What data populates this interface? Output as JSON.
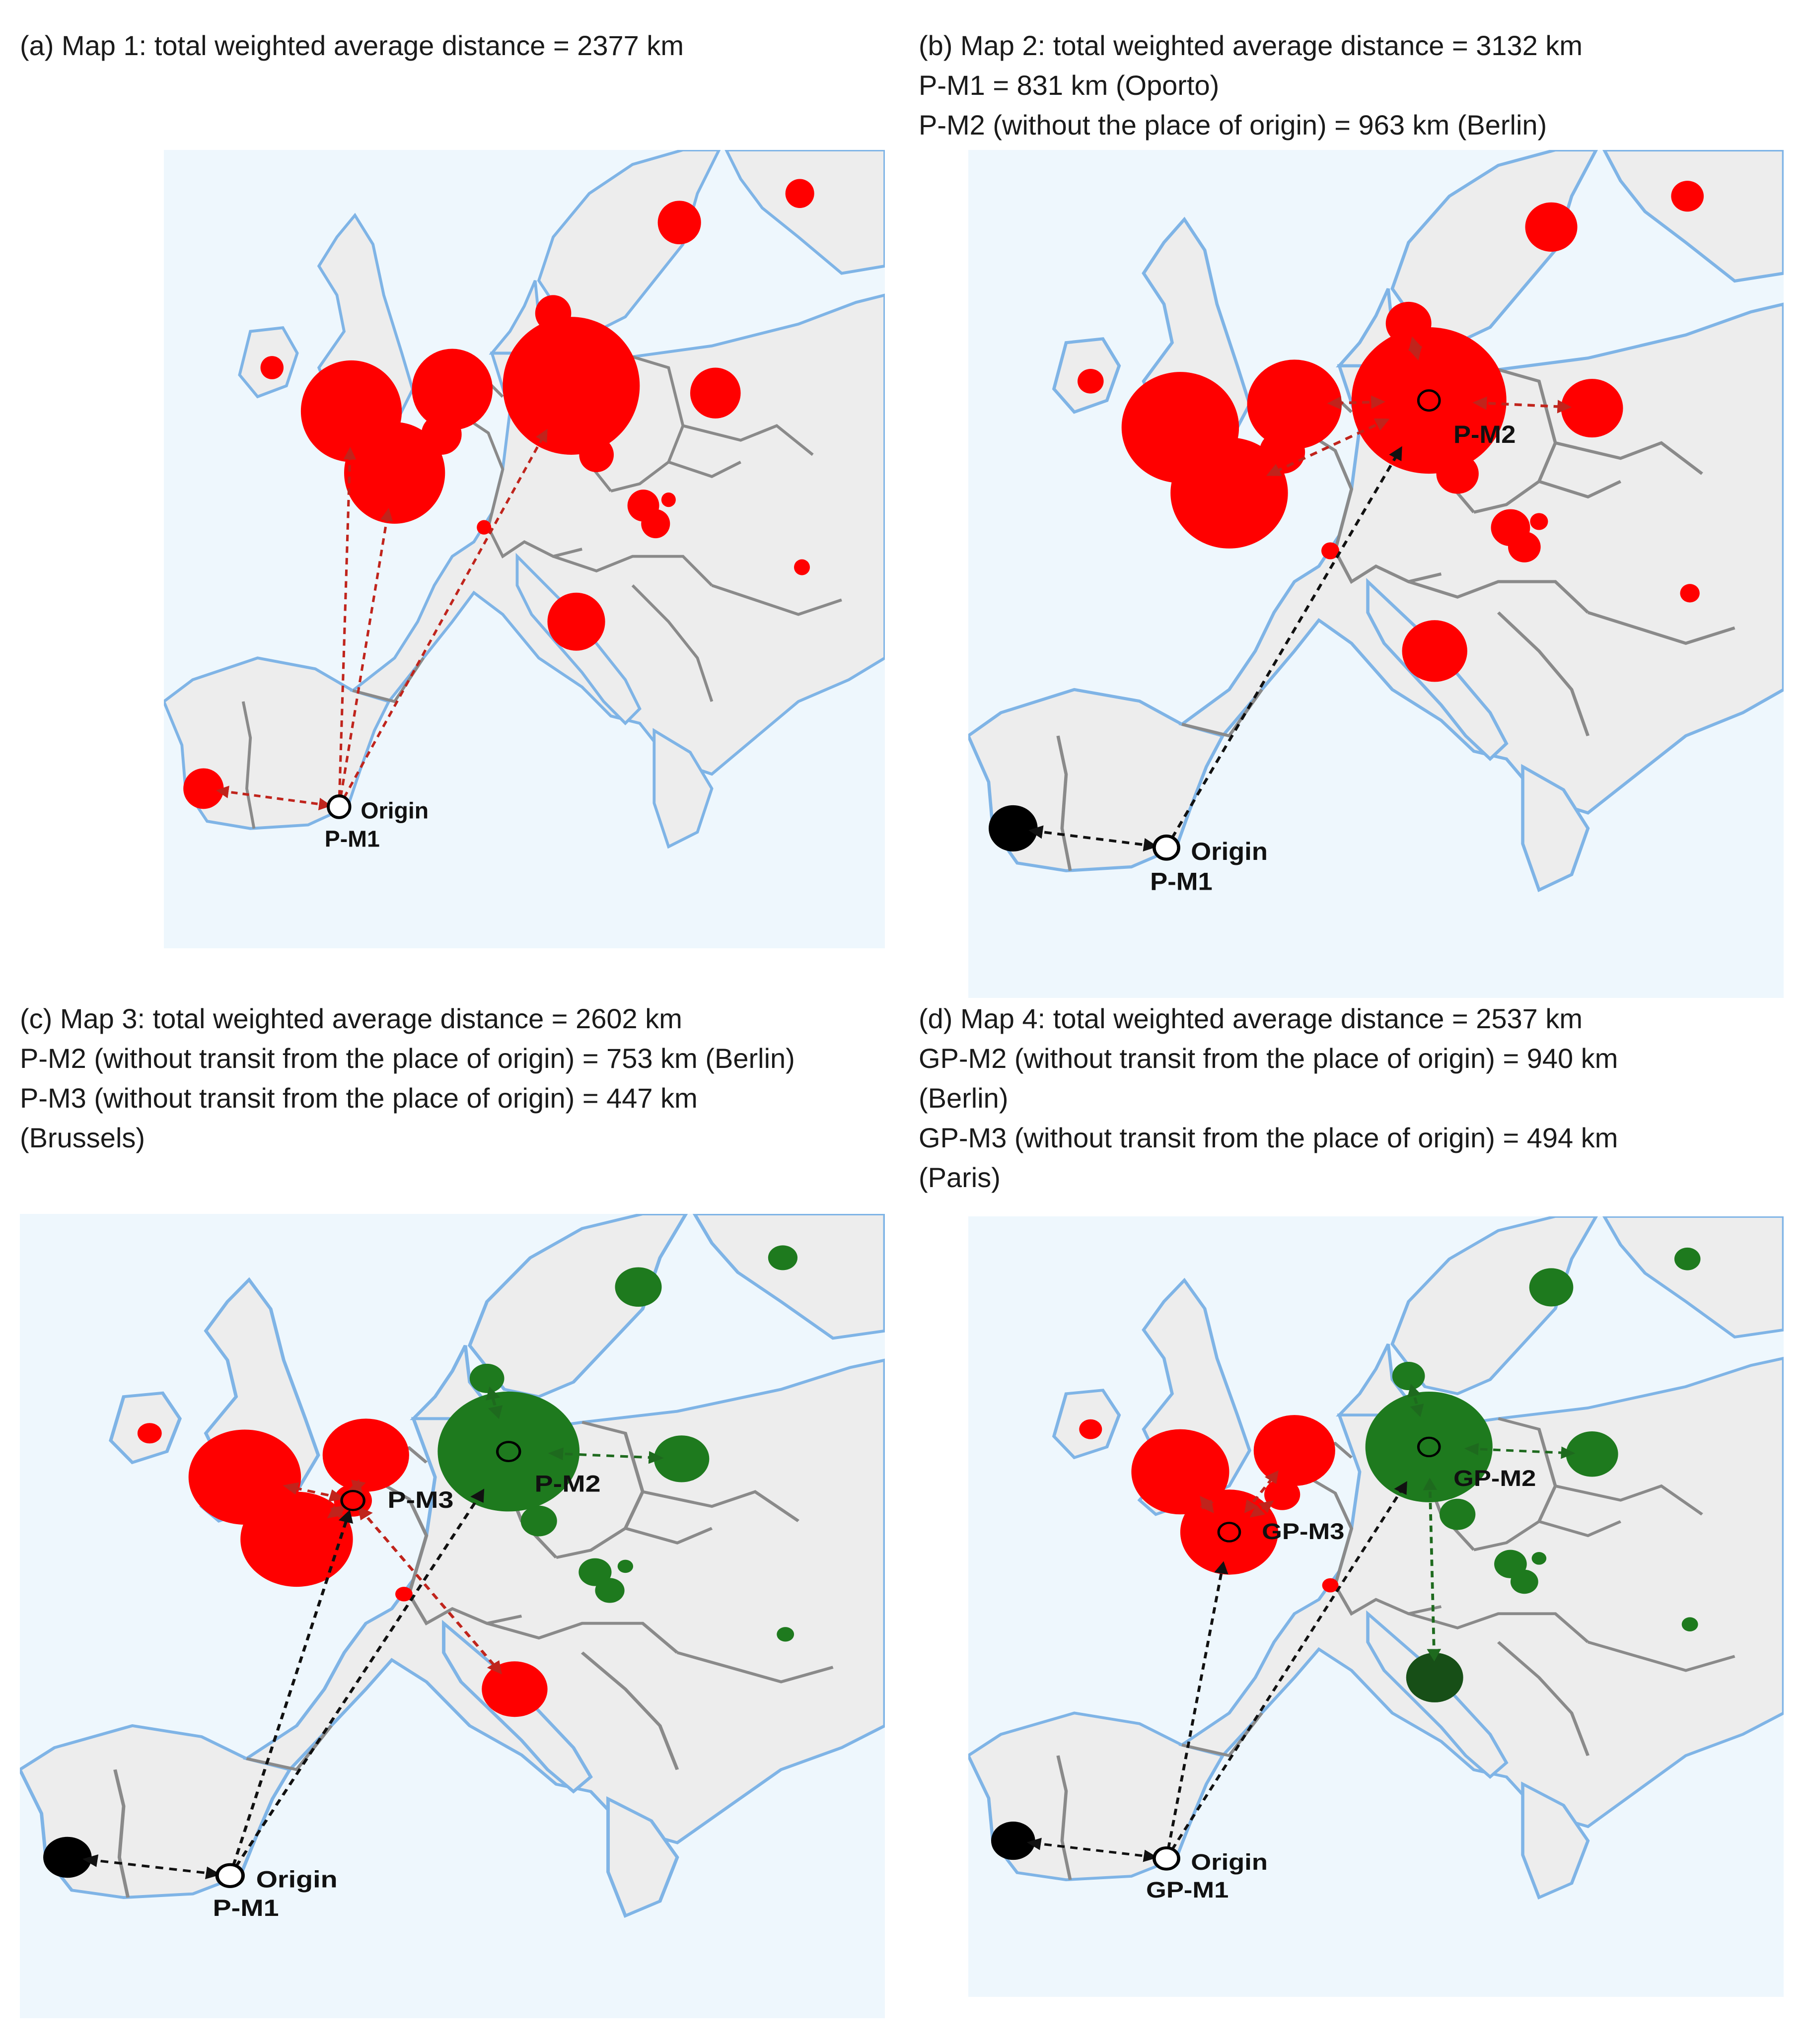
{
  "panels": [
    {
      "id": "a",
      "caption": [
        "(a) Map 1: total weighted average distance = 2377 km"
      ],
      "origin_label": "Origin",
      "labels": [
        "P-M1"
      ],
      "arrows_color": "#b22222",
      "circles": [
        {
          "city": "Oporto",
          "color": "#ff0000",
          "r": 28
        },
        {
          "city": "London",
          "color": "#ff0000",
          "r": 70
        },
        {
          "city": "Paris",
          "color": "#ff0000",
          "r": 70
        },
        {
          "city": "Amsterdam",
          "color": "#ff0000",
          "r": 56
        },
        {
          "city": "Brussels",
          "color": "#ff0000",
          "r": 28
        },
        {
          "city": "Berlin",
          "color": "#ff0000",
          "r": 95
        },
        {
          "city": "Dublin",
          "color": "#ff0000",
          "r": 16
        },
        {
          "city": "Copenhagen",
          "color": "#ff0000",
          "r": 25
        },
        {
          "city": "Stockholm",
          "color": "#ff0000",
          "r": 30
        },
        {
          "city": "Helsinki",
          "color": "#ff0000",
          "r": 20
        },
        {
          "city": "Warsaw",
          "color": "#ff0000",
          "r": 35
        },
        {
          "city": "Prague",
          "color": "#ff0000",
          "r": 24
        },
        {
          "city": "Vienna",
          "color": "#ff0000",
          "r": 22
        },
        {
          "city": "Bratislava",
          "color": "#ff0000",
          "r": 10
        },
        {
          "city": "Budapest",
          "color": "#ff0000",
          "r": 20
        },
        {
          "city": "Geneva",
          "color": "#ff0000",
          "r": 10
        },
        {
          "city": "Rome",
          "color": "#ff0000",
          "r": 40
        },
        {
          "city": "Bucharest",
          "color": "#ff0000",
          "r": 11
        }
      ]
    },
    {
      "id": "b",
      "caption": [
        "(b) Map 2: total weighted average distance = 3132 km",
        "P-M1 = 831 km (Oporto)",
        "P-M2 (without the place of origin) = 963 km (Berlin)"
      ],
      "origin_label": "Origin",
      "labels": [
        "P-M1",
        "P-M2"
      ],
      "circles": [
        {
          "city": "Oporto",
          "color": "#000000",
          "r": 30
        },
        {
          "city": "London",
          "color": "#ff0000",
          "r": 72
        },
        {
          "city": "Paris",
          "color": "#ff0000",
          "r": 72
        },
        {
          "city": "Amsterdam",
          "color": "#ff0000",
          "r": 58
        },
        {
          "city": "Brussels",
          "color": "#ff0000",
          "r": 28
        },
        {
          "city": "Berlin",
          "color": "#ff0000",
          "r": 95
        },
        {
          "city": "Dublin",
          "color": "#ff0000",
          "r": 16
        },
        {
          "city": "Copenhagen",
          "color": "#ff0000",
          "r": 28
        },
        {
          "city": "Stockholm",
          "color": "#ff0000",
          "r": 32
        },
        {
          "city": "Helsinki",
          "color": "#ff0000",
          "r": 20
        },
        {
          "city": "Warsaw",
          "color": "#ff0000",
          "r": 38
        },
        {
          "city": "Prague",
          "color": "#ff0000",
          "r": 26
        },
        {
          "city": "Vienna",
          "color": "#ff0000",
          "r": 24
        },
        {
          "city": "Bratislava",
          "color": "#ff0000",
          "r": 11
        },
        {
          "city": "Budapest",
          "color": "#ff0000",
          "r": 20
        },
        {
          "city": "Geneva",
          "color": "#ff0000",
          "r": 11
        },
        {
          "city": "Rome",
          "color": "#ff0000",
          "r": 40
        },
        {
          "city": "Bucharest",
          "color": "#ff0000",
          "r": 12
        }
      ]
    },
    {
      "id": "c",
      "caption": [
        "(c) Map 3: total weighted average distance = 2602 km",
        "P-M2 (without transit from the place of origin) = 753 km (Berlin)",
        "P-M3 (without transit from the place of origin) = 447 km",
        "(Brussels)"
      ],
      "origin_label": "Origin",
      "labels": [
        "P-M1",
        "P-M2",
        "P-M3"
      ],
      "circles": [
        {
          "city": "Oporto",
          "color": "#000000",
          "r": 28
        },
        {
          "city": "London",
          "color": "#ff0000",
          "r": 65
        },
        {
          "city": "Paris",
          "color": "#ff0000",
          "r": 65
        },
        {
          "city": "Amsterdam",
          "color": "#ff0000",
          "r": 50
        },
        {
          "city": "Brussels",
          "color": "#ff0000",
          "r": 22
        },
        {
          "city": "Berlin",
          "color": "#1e7a1e",
          "r": 82
        },
        {
          "city": "Dublin",
          "color": "#ff0000",
          "r": 14
        },
        {
          "city": "Copenhagen",
          "color": "#1e7a1e",
          "r": 20
        },
        {
          "city": "Stockholm",
          "color": "#1e7a1e",
          "r": 27
        },
        {
          "city": "Helsinki",
          "color": "#1e7a1e",
          "r": 17
        },
        {
          "city": "Warsaw",
          "color": "#1e7a1e",
          "r": 32
        },
        {
          "city": "Prague",
          "color": "#1e7a1e",
          "r": 21
        },
        {
          "city": "Vienna",
          "color": "#1e7a1e",
          "r": 19
        },
        {
          "city": "Bratislava",
          "color": "#1e7a1e",
          "r": 9
        },
        {
          "city": "Budapest",
          "color": "#1e7a1e",
          "r": 17
        },
        {
          "city": "Geneva",
          "color": "#ff0000",
          "r": 10
        },
        {
          "city": "Rome",
          "color": "#ff0000",
          "r": 38
        },
        {
          "city": "Bucharest",
          "color": "#1e7a1e",
          "r": 10
        }
      ]
    },
    {
      "id": "d",
      "caption": [
        "(d) Map 4: total weighted average distance = 2537 km",
        "GP-M2 (without transit from the place of origin) = 940 km",
        "(Berlin)",
        "GP-M3 (without transit from the place of origin) = 494 km",
        "(Paris)"
      ],
      "origin_label": "Origin",
      "labels": [
        "GP-M1",
        "GP-M2",
        "GP-M3"
      ],
      "circles": [
        {
          "city": "Oporto",
          "color": "#000000",
          "r": 27
        },
        {
          "city": "London",
          "color": "#ff0000",
          "r": 60
        },
        {
          "city": "Paris",
          "color": "#ff0000",
          "r": 60
        },
        {
          "city": "Amsterdam",
          "color": "#ff0000",
          "r": 50
        },
        {
          "city": "Brussels",
          "color": "#ff0000",
          "r": 22
        },
        {
          "city": "Berlin",
          "color": "#1e7a1e",
          "r": 78
        },
        {
          "city": "Dublin",
          "color": "#ff0000",
          "r": 14
        },
        {
          "city": "Copenhagen",
          "color": "#1e7a1e",
          "r": 20
        },
        {
          "city": "Stockholm",
          "color": "#1e7a1e",
          "r": 27
        },
        {
          "city": "Helsinki",
          "color": "#1e7a1e",
          "r": 16
        },
        {
          "city": "Warsaw",
          "color": "#1e7a1e",
          "r": 32
        },
        {
          "city": "Prague",
          "color": "#1e7a1e",
          "r": 22
        },
        {
          "city": "Vienna",
          "color": "#1e7a1e",
          "r": 20
        },
        {
          "city": "Bratislava",
          "color": "#1e7a1e",
          "r": 9
        },
        {
          "city": "Budapest",
          "color": "#1e7a1e",
          "r": 17
        },
        {
          "city": "Geneva",
          "color": "#ff0000",
          "r": 10
        },
        {
          "city": "Rome",
          "color": "#174f17",
          "r": 35
        },
        {
          "city": "Bucharest",
          "color": "#1e7a1e",
          "r": 10
        }
      ]
    }
  ]
}
